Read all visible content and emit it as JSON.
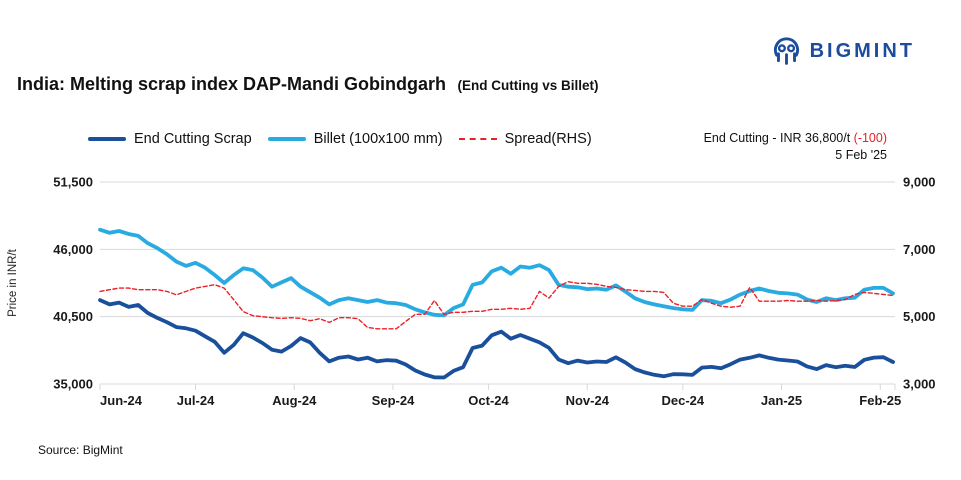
{
  "logo": {
    "text": "BIGMINT",
    "color": "#1d4c9c",
    "icon": "bigmint-monogram"
  },
  "title": {
    "main": "India: Melting scrap index DAP-Mandi Gobindgarh",
    "sub": "(End Cutting vs Billet)"
  },
  "legend": {
    "items": [
      {
        "label": "End Cutting Scrap",
        "color": "#1a4f9c",
        "style": "solid"
      },
      {
        "label": "Billet (100x100 mm)",
        "color": "#29abe2",
        "style": "solid"
      },
      {
        "label": "Spread(RHS)",
        "color": "#ec2027",
        "style": "dashed"
      }
    ]
  },
  "annotation": {
    "price": "End Cutting - INR 36,800/t",
    "change": "(-100)",
    "date": "5 Feb '25"
  },
  "source": "Source: BigMint",
  "colors": {
    "end_cutting": "#1a4f9c",
    "billet": "#29abe2",
    "spread": "#ec2027",
    "grid": "#d8d8d8",
    "logo_blue": "#1d4c9c",
    "negative_red": "#ed1c24"
  },
  "chart_data": {
    "type": "line",
    "title": "India: Melting scrap index DAP-Mandi Gobindgarh (End Cutting vs Billet)",
    "x_tick_labels": [
      "Jun-24",
      "Jul-24",
      "Aug-24",
      "Sep-24",
      "Oct-24",
      "Nov-24",
      "Dec-24",
      "Jan-25",
      "Feb-25"
    ],
    "x_tick_days": [
      0,
      30,
      61,
      92,
      122,
      153,
      183,
      214,
      245
    ],
    "x_total_days": 249,
    "x_start": "1 Jun 2024",
    "x_end": "5 Feb 2025",
    "grid": true,
    "legend_position": "top",
    "left_axis": {
      "label": "Price in INR/t",
      "ticks": [
        35000,
        40500,
        46000,
        51500
      ],
      "range": [
        35000,
        51500
      ]
    },
    "right_axis": {
      "ticks": [
        3000,
        5000,
        7000,
        9000
      ],
      "range": [
        3000,
        9000
      ]
    },
    "series": [
      {
        "id": "end_cutting",
        "name": "End Cutting Scrap",
        "axis": "left",
        "color": "#1a4f9c",
        "style": "solid",
        "values": [
          41850,
          41500,
          41650,
          41300,
          41450,
          40800,
          40400,
          40050,
          39650,
          39550,
          39350,
          38900,
          38450,
          37550,
          38200,
          39150,
          38800,
          38350,
          37800,
          37650,
          38100,
          38750,
          38400,
          37550,
          36850,
          37150,
          37250,
          37000,
          37150,
          36850,
          36950,
          36900,
          36590,
          36100,
          35780,
          35550,
          35530,
          36070,
          36370,
          37940,
          38140,
          38980,
          39280,
          38700,
          39000,
          38700,
          38400,
          37950,
          37000,
          36700,
          36910,
          36760,
          36840,
          36800,
          37180,
          36750,
          36220,
          35950,
          35750,
          35630,
          35800,
          35790,
          35740,
          36340,
          36400,
          36290,
          36620,
          36990,
          37140,
          37340,
          37140,
          36990,
          36920,
          36840,
          36440,
          36220,
          36540,
          36370,
          36490,
          36390,
          36980,
          37160,
          37190,
          36800
        ]
      },
      {
        "id": "billet",
        "name": "Billet (100x100 mm)",
        "axis": "left",
        "color": "#29abe2",
        "style": "solid",
        "values": [
          47600,
          47350,
          47500,
          47250,
          47100,
          46500,
          46100,
          45600,
          45000,
          44650,
          44900,
          44500,
          43900,
          43250,
          43900,
          44450,
          44300,
          43700,
          42950,
          43300,
          43650,
          42950,
          42500,
          42050,
          41500,
          41850,
          42000,
          41850,
          41700,
          41850,
          41650,
          41600,
          41450,
          41100,
          40850,
          40650,
          40600,
          41200,
          41500,
          43100,
          43300,
          44200,
          44500,
          44000,
          44600,
          44500,
          44700,
          44300,
          43100,
          42950,
          42900,
          42750,
          42800,
          42700,
          43050,
          42550,
          42000,
          41700,
          41500,
          41350,
          41200,
          41100,
          41050,
          41850,
          41800,
          41600,
          41900,
          42300,
          42600,
          42800,
          42600,
          42450,
          42400,
          42300,
          41900,
          41700,
          42000,
          41850,
          42000,
          42050,
          42700,
          42850,
          42850,
          42400
        ]
      },
      {
        "id": "spread",
        "name": "Spread(RHS)",
        "axis": "right",
        "color": "#ec2027",
        "style": "dashed",
        "values": [
          5750,
          5800,
          5850,
          5850,
          5800,
          5800,
          5800,
          5750,
          5650,
          5750,
          5850,
          5900,
          5950,
          5850,
          5500,
          5150,
          5030,
          5000,
          4970,
          4950,
          4970,
          4950,
          4880,
          4940,
          4830,
          4970,
          4970,
          4940,
          4680,
          4640,
          4640,
          4640,
          4860,
          5070,
          5070,
          5480,
          5070,
          5130,
          5130,
          5160,
          5160,
          5220,
          5220,
          5250,
          5220,
          5250,
          5750,
          5550,
          5900,
          6040,
          5990,
          5990,
          5960,
          5900,
          5870,
          5800,
          5780,
          5750,
          5750,
          5720,
          5400,
          5310,
          5310,
          5510,
          5400,
          5310,
          5280,
          5310,
          5870,
          5460,
          5460,
          5460,
          5480,
          5460,
          5460,
          5480,
          5460,
          5480,
          5510,
          5660,
          5720,
          5690,
          5660,
          5630
        ]
      }
    ]
  }
}
